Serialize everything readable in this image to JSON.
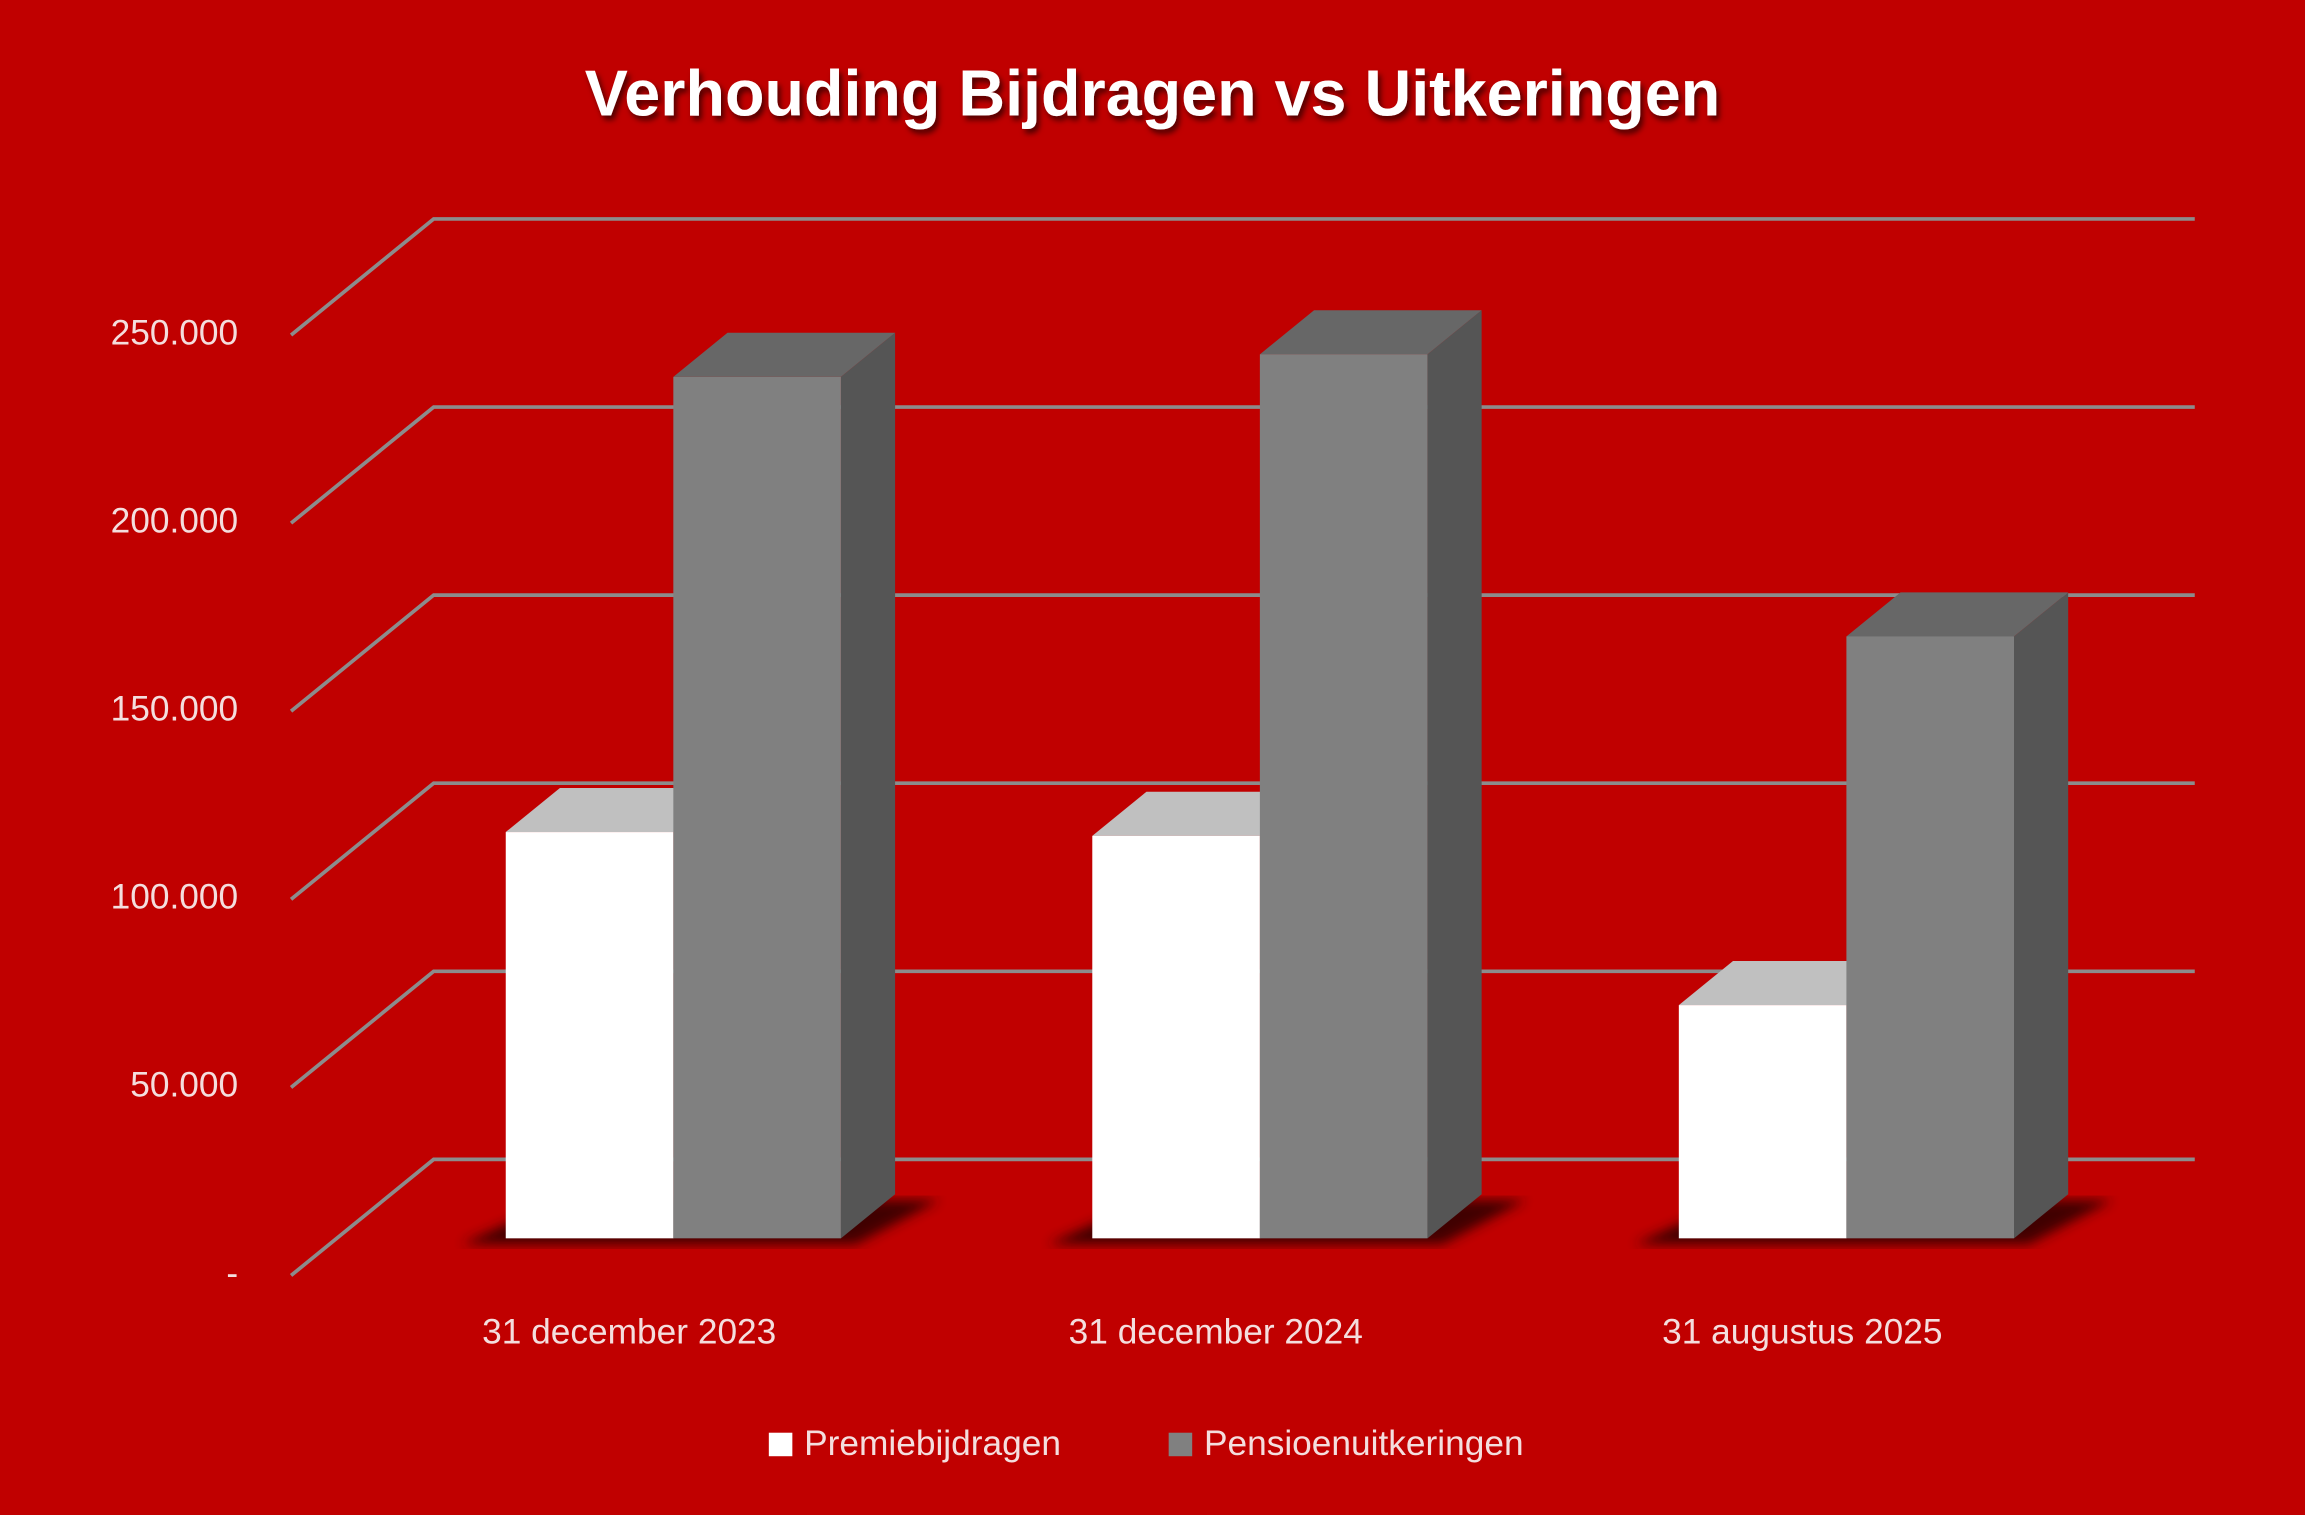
{
  "chart_data": {
    "type": "bar3d",
    "title": "Verhouding Bijdragen vs Uitkeringen",
    "categories": [
      "31 december 2023",
      "31 december 2024",
      "31 augustus 2025"
    ],
    "series": [
      {
        "name": "Premiebijdragen",
        "color": "#ffffff",
        "values": [
          108000,
          107000,
          62000
        ]
      },
      {
        "name": "Pensioenuitkeringen",
        "color": "#808080",
        "values": [
          229000,
          235000,
          160000
        ]
      }
    ],
    "ylim": [
      0,
      250000
    ],
    "yticks": [
      {
        "value": 0,
        "label": "-"
      },
      {
        "value": 50000,
        "label": "50.000"
      },
      {
        "value": 100000,
        "label": "100.000"
      },
      {
        "value": 150000,
        "label": "150.000"
      },
      {
        "value": 200000,
        "label": "200.000"
      },
      {
        "value": 250000,
        "label": "250.000"
      }
    ],
    "grid": true,
    "legend": "bottom"
  }
}
